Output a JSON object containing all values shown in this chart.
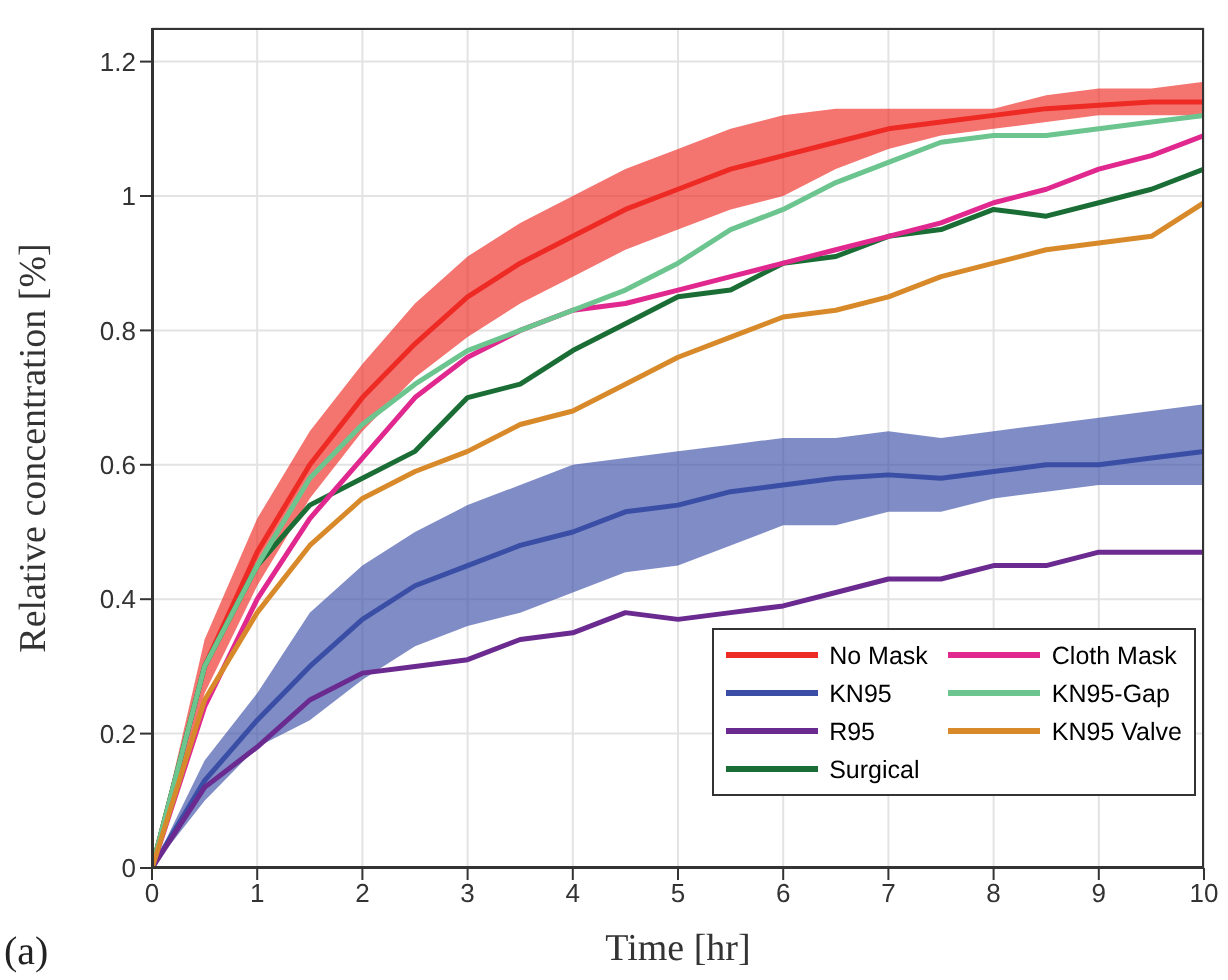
{
  "chart_data": {
    "type": "line",
    "xlabel": "Time [hr]",
    "ylabel": "Relative concentration [%]",
    "annotations": [
      "(a)"
    ],
    "x": [
      0,
      0.5,
      1,
      1.5,
      2,
      2.5,
      3,
      3.5,
      4,
      4.5,
      5,
      5.5,
      6,
      6.5,
      7,
      7.5,
      8,
      8.5,
      9,
      9.5,
      10
    ],
    "xlim": [
      0,
      10
    ],
    "xticks": [
      0,
      1,
      2,
      3,
      4,
      5,
      6,
      7,
      8,
      9,
      10
    ],
    "ylim": [
      0,
      1.25
    ],
    "yticks": [
      0,
      0.2,
      0.4,
      0.6,
      0.8,
      1,
      1.2
    ],
    "grid": true,
    "legend": "bottom right",
    "marker": "none",
    "line_style": "solid",
    "series": [
      {
        "name": "No Mask",
        "color": "#ee2a24",
        "values": [
          0,
          0.3,
          0.47,
          0.6,
          0.7,
          0.78,
          0.85,
          0.9,
          0.94,
          0.98,
          1.01,
          1.04,
          1.06,
          1.08,
          1.1,
          1.11,
          1.12,
          1.13,
          1.135,
          1.14,
          1.14
        ],
        "lower": [
          0,
          0.26,
          0.42,
          0.55,
          0.65,
          0.73,
          0.79,
          0.84,
          0.88,
          0.92,
          0.95,
          0.98,
          1.0,
          1.04,
          1.07,
          1.09,
          1.1,
          1.11,
          1.12,
          1.12,
          1.12
        ],
        "upper": [
          0,
          0.34,
          0.52,
          0.65,
          0.75,
          0.84,
          0.91,
          0.96,
          1.0,
          1.04,
          1.07,
          1.1,
          1.12,
          1.13,
          1.13,
          1.13,
          1.13,
          1.15,
          1.16,
          1.16,
          1.17
        ]
      },
      {
        "name": "KN95",
        "color": "#3a4ea6",
        "values": [
          0,
          0.13,
          0.22,
          0.3,
          0.37,
          0.42,
          0.45,
          0.48,
          0.5,
          0.53,
          0.54,
          0.56,
          0.57,
          0.58,
          0.585,
          0.58,
          0.59,
          0.6,
          0.6,
          0.61,
          0.62
        ],
        "lower": [
          0,
          0.1,
          0.18,
          0.22,
          0.28,
          0.33,
          0.36,
          0.38,
          0.41,
          0.44,
          0.45,
          0.48,
          0.51,
          0.51,
          0.53,
          0.53,
          0.55,
          0.56,
          0.57,
          0.57,
          0.57
        ],
        "upper": [
          0,
          0.16,
          0.26,
          0.38,
          0.45,
          0.5,
          0.54,
          0.57,
          0.6,
          0.61,
          0.62,
          0.63,
          0.64,
          0.64,
          0.65,
          0.64,
          0.65,
          0.66,
          0.67,
          0.68,
          0.69
        ]
      },
      {
        "name": "R95",
        "color": "#6a2a8f",
        "values": [
          0,
          0.12,
          0.18,
          0.25,
          0.29,
          0.3,
          0.31,
          0.34,
          0.35,
          0.38,
          0.37,
          0.38,
          0.39,
          0.41,
          0.43,
          0.43,
          0.45,
          0.45,
          0.47,
          0.47,
          0.47
        ]
      },
      {
        "name": "Surgical",
        "color": "#1a6e35",
        "values": [
          0,
          0.3,
          0.45,
          0.54,
          0.58,
          0.62,
          0.7,
          0.72,
          0.77,
          0.81,
          0.85,
          0.86,
          0.9,
          0.91,
          0.94,
          0.95,
          0.98,
          0.97,
          0.99,
          1.01,
          1.04
        ]
      },
      {
        "name": "Cloth Mask",
        "color": "#e0288f",
        "values": [
          0,
          0.24,
          0.4,
          0.52,
          0.61,
          0.7,
          0.76,
          0.8,
          0.83,
          0.84,
          0.86,
          0.88,
          0.9,
          0.92,
          0.94,
          0.96,
          0.99,
          1.01,
          1.04,
          1.06,
          1.09
        ]
      },
      {
        "name": "KN95-Gap",
        "color": "#6cc58e",
        "values": [
          0,
          0.3,
          0.45,
          0.58,
          0.66,
          0.72,
          0.77,
          0.8,
          0.83,
          0.86,
          0.9,
          0.95,
          0.98,
          1.02,
          1.05,
          1.08,
          1.09,
          1.09,
          1.1,
          1.11,
          1.12
        ]
      },
      {
        "name": "KN95 Valve",
        "color": "#d88a2a",
        "values": [
          0,
          0.25,
          0.38,
          0.48,
          0.55,
          0.59,
          0.62,
          0.66,
          0.68,
          0.72,
          0.76,
          0.79,
          0.82,
          0.83,
          0.85,
          0.88,
          0.9,
          0.92,
          0.93,
          0.94,
          0.99
        ]
      }
    ]
  }
}
